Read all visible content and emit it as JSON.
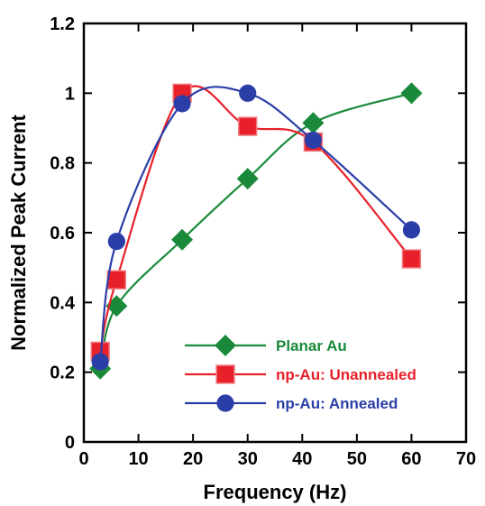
{
  "chart_data": {
    "type": "line",
    "xlabel": "Frequency (Hz)",
    "ylabel": "Normalized Peak Current",
    "xlim": [
      0,
      70
    ],
    "ylim": [
      0,
      1.2
    ],
    "x_ticks": [
      "0",
      "10",
      "20",
      "30",
      "40",
      "50",
      "60",
      "70"
    ],
    "y_ticks": [
      "0",
      "0.2",
      "0.4",
      "0.6",
      "0.8",
      "1",
      "1.2"
    ],
    "x_tick_values": [
      0,
      10,
      20,
      30,
      40,
      50,
      60,
      70
    ],
    "y_tick_values": [
      0,
      0.2,
      0.4,
      0.6,
      0.8,
      1.0,
      1.2
    ],
    "grid": false,
    "legend_position": "bottom-right",
    "series": [
      {
        "name": "Planar Au",
        "color": "#1a8a3a",
        "marker": "diamond",
        "x": [
          3,
          6,
          18,
          30,
          42,
          60
        ],
        "y": [
          0.21,
          0.39,
          0.58,
          0.755,
          0.915,
          1.0
        ]
      },
      {
        "name": "np-Au: Unannealed",
        "color": "#e8202a",
        "marker": "square",
        "x": [
          3,
          6,
          18,
          30,
          42,
          60
        ],
        "y": [
          0.26,
          0.465,
          1.0,
          0.905,
          0.86,
          0.525
        ]
      },
      {
        "name": "np-Au: Annealed",
        "color": "#2b3ea8",
        "marker": "circle",
        "x": [
          3,
          6,
          18,
          30,
          42,
          60
        ],
        "y": [
          0.23,
          0.575,
          0.97,
          1.0,
          0.865,
          0.608
        ]
      }
    ]
  }
}
